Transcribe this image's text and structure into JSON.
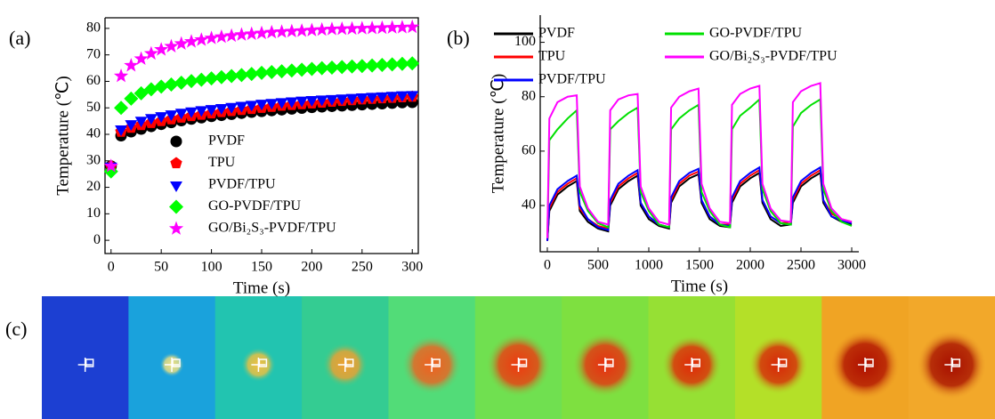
{
  "chart_data": [
    {
      "type": "scatter",
      "panel_label": "(a)",
      "x_label": "Time (s)",
      "y_label": "Temperature (℃)",
      "xlim": [
        -6,
        306
      ],
      "ylim": [
        -5,
        84
      ],
      "xticks": [
        0,
        50,
        100,
        150,
        200,
        250,
        300
      ],
      "yticks": [
        0,
        10,
        20,
        30,
        40,
        50,
        60,
        70,
        80
      ],
      "legend": "lower center",
      "x": [
        0,
        10,
        20,
        30,
        40,
        50,
        60,
        70,
        80,
        90,
        100,
        110,
        120,
        130,
        140,
        150,
        160,
        170,
        180,
        190,
        200,
        210,
        220,
        230,
        240,
        250,
        260,
        270,
        280,
        290,
        300
      ],
      "series": [
        {
          "name": "PVDF",
          "color": "#000000",
          "marker": "circle",
          "values": [
            28,
            39.5,
            41,
            42,
            43,
            43.8,
            44.5,
            45.2,
            45.8,
            46.3,
            46.8,
            47.2,
            47.6,
            48,
            48.4,
            48.7,
            49,
            49.3,
            49.6,
            49.9,
            50.2,
            50.4,
            50.6,
            50.8,
            51,
            51.2,
            51.4,
            51.6,
            51.8,
            52,
            52.1
          ]
        },
        {
          "name": "TPU",
          "color": "#ff0000",
          "marker": "pentagon",
          "values": [
            28,
            41,
            42.5,
            43.5,
            44.3,
            45,
            45.7,
            46.3,
            46.9,
            47.4,
            47.9,
            48.4,
            48.8,
            49.2,
            49.6,
            50,
            50.4,
            50.8,
            51.1,
            51.4,
            51.7,
            52,
            52.3,
            52.6,
            52.9,
            53.2,
            53.4,
            53.6,
            53.8,
            54,
            54.2
          ]
        },
        {
          "name": "PVDF/TPU",
          "color": "#0000ff",
          "marker": "triangle-down",
          "values": [
            28,
            42,
            44,
            45.3,
            46.3,
            47,
            47.7,
            48.3,
            48.8,
            49.3,
            49.7,
            50.1,
            50.5,
            50.9,
            51.3,
            51.7,
            52,
            52.3,
            52.6,
            52.9,
            53.1,
            53.3,
            53.5,
            53.7,
            53.9,
            54.1,
            54.3,
            54.5,
            54.7,
            54.9,
            55
          ]
        },
        {
          "name": "GO-PVDF/TPU",
          "color": "#00ff00",
          "marker": "diamond",
          "values": [
            26,
            50,
            53.5,
            55.5,
            57,
            58,
            58.8,
            59.5,
            60.1,
            60.6,
            61.1,
            61.6,
            62,
            62.4,
            62.8,
            63.2,
            63.5,
            63.8,
            64.1,
            64.4,
            64.7,
            65,
            65.2,
            65.4,
            65.6,
            65.8,
            66,
            66.2,
            66.4,
            66.6,
            66.8
          ]
        },
        {
          "name": "GO/Bi₂S₃-PVDF/TPU",
          "color": "#ff00ff",
          "marker": "star",
          "values": [
            28,
            62,
            66,
            68.5,
            70.5,
            72,
            73.2,
            74.2,
            75,
            75.7,
            76.3,
            76.8,
            77.2,
            77.6,
            77.9,
            78.2,
            78.5,
            78.7,
            78.9,
            79.1,
            79.3,
            79.5,
            79.7,
            79.8,
            79.9,
            80,
            80.1,
            80.2,
            80.3,
            80.4,
            80.5
          ]
        }
      ]
    },
    {
      "type": "line",
      "panel_label": "(b)",
      "x_label": "Time (s)",
      "y_label": "Temperature (℃)",
      "xlim": [
        -70,
        3070
      ],
      "ylim": [
        23,
        110
      ],
      "xticks": [
        0,
        500,
        1000,
        1500,
        2000,
        2500,
        3000
      ],
      "yticks": [
        40,
        60,
        80,
        100
      ],
      "legend": "upper center",
      "x": [
        0,
        20,
        100,
        200,
        290,
        320,
        400,
        500,
        600,
        620,
        700,
        800,
        890,
        920,
        1000,
        1100,
        1200,
        1220,
        1300,
        1400,
        1490,
        1520,
        1600,
        1700,
        1800,
        1820,
        1900,
        2000,
        2090,
        2120,
        2200,
        2300,
        2400,
        2420,
        2500,
        2600,
        2690,
        2720,
        2800,
        2900,
        3000
      ],
      "series": [
        {
          "name": "PVDF",
          "color": "#000000",
          "values": [
            27,
            38,
            44,
            47,
            49,
            38,
            34,
            31.5,
            30.5,
            40,
            46,
            49,
            51,
            40,
            35,
            32.5,
            31.5,
            41,
            47,
            50,
            51.5,
            41,
            35,
            32.5,
            32,
            41,
            47,
            50,
            52,
            41,
            35,
            32.5,
            33,
            41,
            47,
            50,
            52,
            41,
            36,
            34,
            33
          ]
        },
        {
          "name": "TPU",
          "color": "#ff0000",
          "values": [
            27,
            39,
            45,
            48,
            50,
            39,
            35,
            32.5,
            31.5,
            41,
            47,
            50,
            52,
            41,
            36,
            33,
            32,
            42,
            48,
            51,
            52.5,
            42,
            36,
            33,
            33,
            42,
            48,
            51,
            53,
            42,
            36,
            33.5,
            34,
            42,
            48,
            51,
            53,
            42,
            37,
            35,
            34
          ]
        },
        {
          "name": "PVDF/TPU",
          "color": "#0000ff",
          "values": [
            27,
            40,
            46,
            49,
            51,
            40,
            35,
            32,
            31,
            42,
            48,
            51,
            53,
            41,
            36,
            33,
            32,
            43,
            49,
            52,
            53.5,
            42,
            36,
            33,
            32.5,
            43,
            49,
            52,
            54,
            42,
            36,
            33.5,
            33,
            43,
            49,
            52,
            54,
            42,
            36,
            34.5,
            33.5
          ]
        },
        {
          "name": "GO-PVDF/TPU",
          "color": "#00e000",
          "values": [
            28,
            64,
            68,
            72,
            75,
            45,
            38,
            33.5,
            32,
            68,
            71,
            74,
            76,
            45,
            38,
            33,
            32,
            68,
            72,
            75,
            77,
            45,
            38,
            33,
            32,
            68,
            73,
            76,
            79,
            46,
            38,
            33.5,
            33,
            69,
            74,
            77,
            79,
            46,
            38,
            34,
            32.5
          ]
        },
        {
          "name": "GO/Bi₂S₃-PVDF/TPU",
          "color": "#ff00ff",
          "values": [
            28,
            72,
            78,
            80,
            80.5,
            47,
            39,
            34,
            33,
            75,
            79,
            80.5,
            81,
            47,
            39,
            34,
            33,
            76,
            80,
            82,
            83,
            48,
            39,
            34,
            33.5,
            77,
            81,
            83,
            84,
            48,
            39,
            34.5,
            34,
            78,
            82,
            84,
            85,
            48,
            39,
            35,
            34
          ]
        }
      ]
    }
  ],
  "thermal_images": {
    "panel_label": "(c)"
  }
}
